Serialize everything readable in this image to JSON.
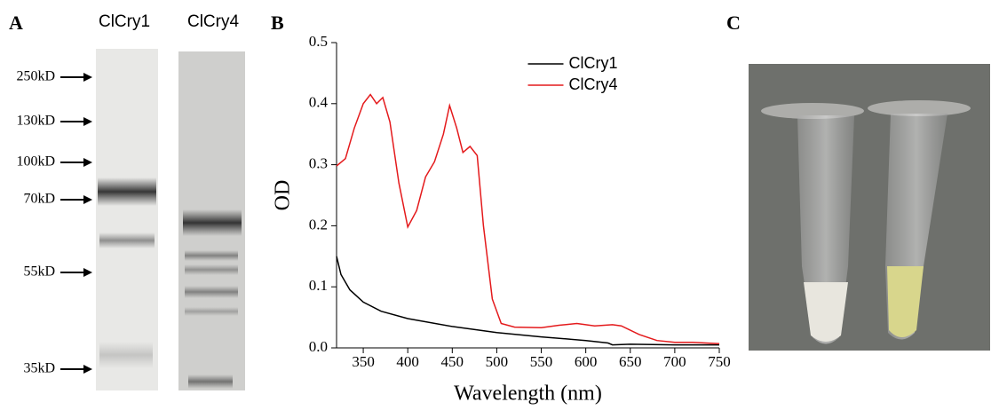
{
  "panel_a": {
    "label": "A",
    "lanes": [
      "ClCry1",
      "ClCry4"
    ],
    "markers": [
      "250kD",
      "130kD",
      "100kD",
      "70kD",
      "55kD",
      "35kD"
    ]
  },
  "panel_c": {
    "label": "C"
  },
  "chart_data": {
    "type": "line",
    "panel_label": "B",
    "xlabel": "Wavelength (nm)",
    "ylabel": "OD",
    "xlim": [
      320,
      750
    ],
    "ylim": [
      0,
      0.5
    ],
    "xticks": [
      350,
      400,
      450,
      500,
      550,
      600,
      650,
      700,
      750
    ],
    "yticks": [
      {
        "value": 0,
        "label": "0.0"
      },
      0.1,
      0.2,
      0.3,
      0.4,
      0.5
    ],
    "legend": "upper center",
    "series": [
      {
        "name": "ClCry1",
        "color": "#000000",
        "x": [
          320,
          325,
          335,
          350,
          370,
          400,
          450,
          500,
          550,
          600,
          625,
          630,
          650,
          700,
          750
        ],
        "values": [
          0.15,
          0.12,
          0.095,
          0.075,
          0.06,
          0.048,
          0.035,
          0.025,
          0.018,
          0.012,
          0.008,
          0.005,
          0.006,
          0.005,
          0.005
        ]
      },
      {
        "name": "ClCry4",
        "color": "#e41a1c",
        "x": [
          320,
          330,
          340,
          350,
          358,
          365,
          372,
          380,
          390,
          400,
          410,
          420,
          430,
          440,
          447,
          455,
          462,
          470,
          478,
          485,
          495,
          505,
          520,
          550,
          570,
          590,
          610,
          630,
          640,
          660,
          680,
          700,
          720,
          750
        ],
        "values": [
          0.298,
          0.31,
          0.36,
          0.4,
          0.415,
          0.4,
          0.41,
          0.37,
          0.27,
          0.198,
          0.225,
          0.28,
          0.305,
          0.35,
          0.397,
          0.36,
          0.32,
          0.33,
          0.315,
          0.2,
          0.08,
          0.04,
          0.034,
          0.033,
          0.037,
          0.04,
          0.036,
          0.038,
          0.036,
          0.022,
          0.012,
          0.009,
          0.009,
          0.007
        ]
      }
    ]
  }
}
